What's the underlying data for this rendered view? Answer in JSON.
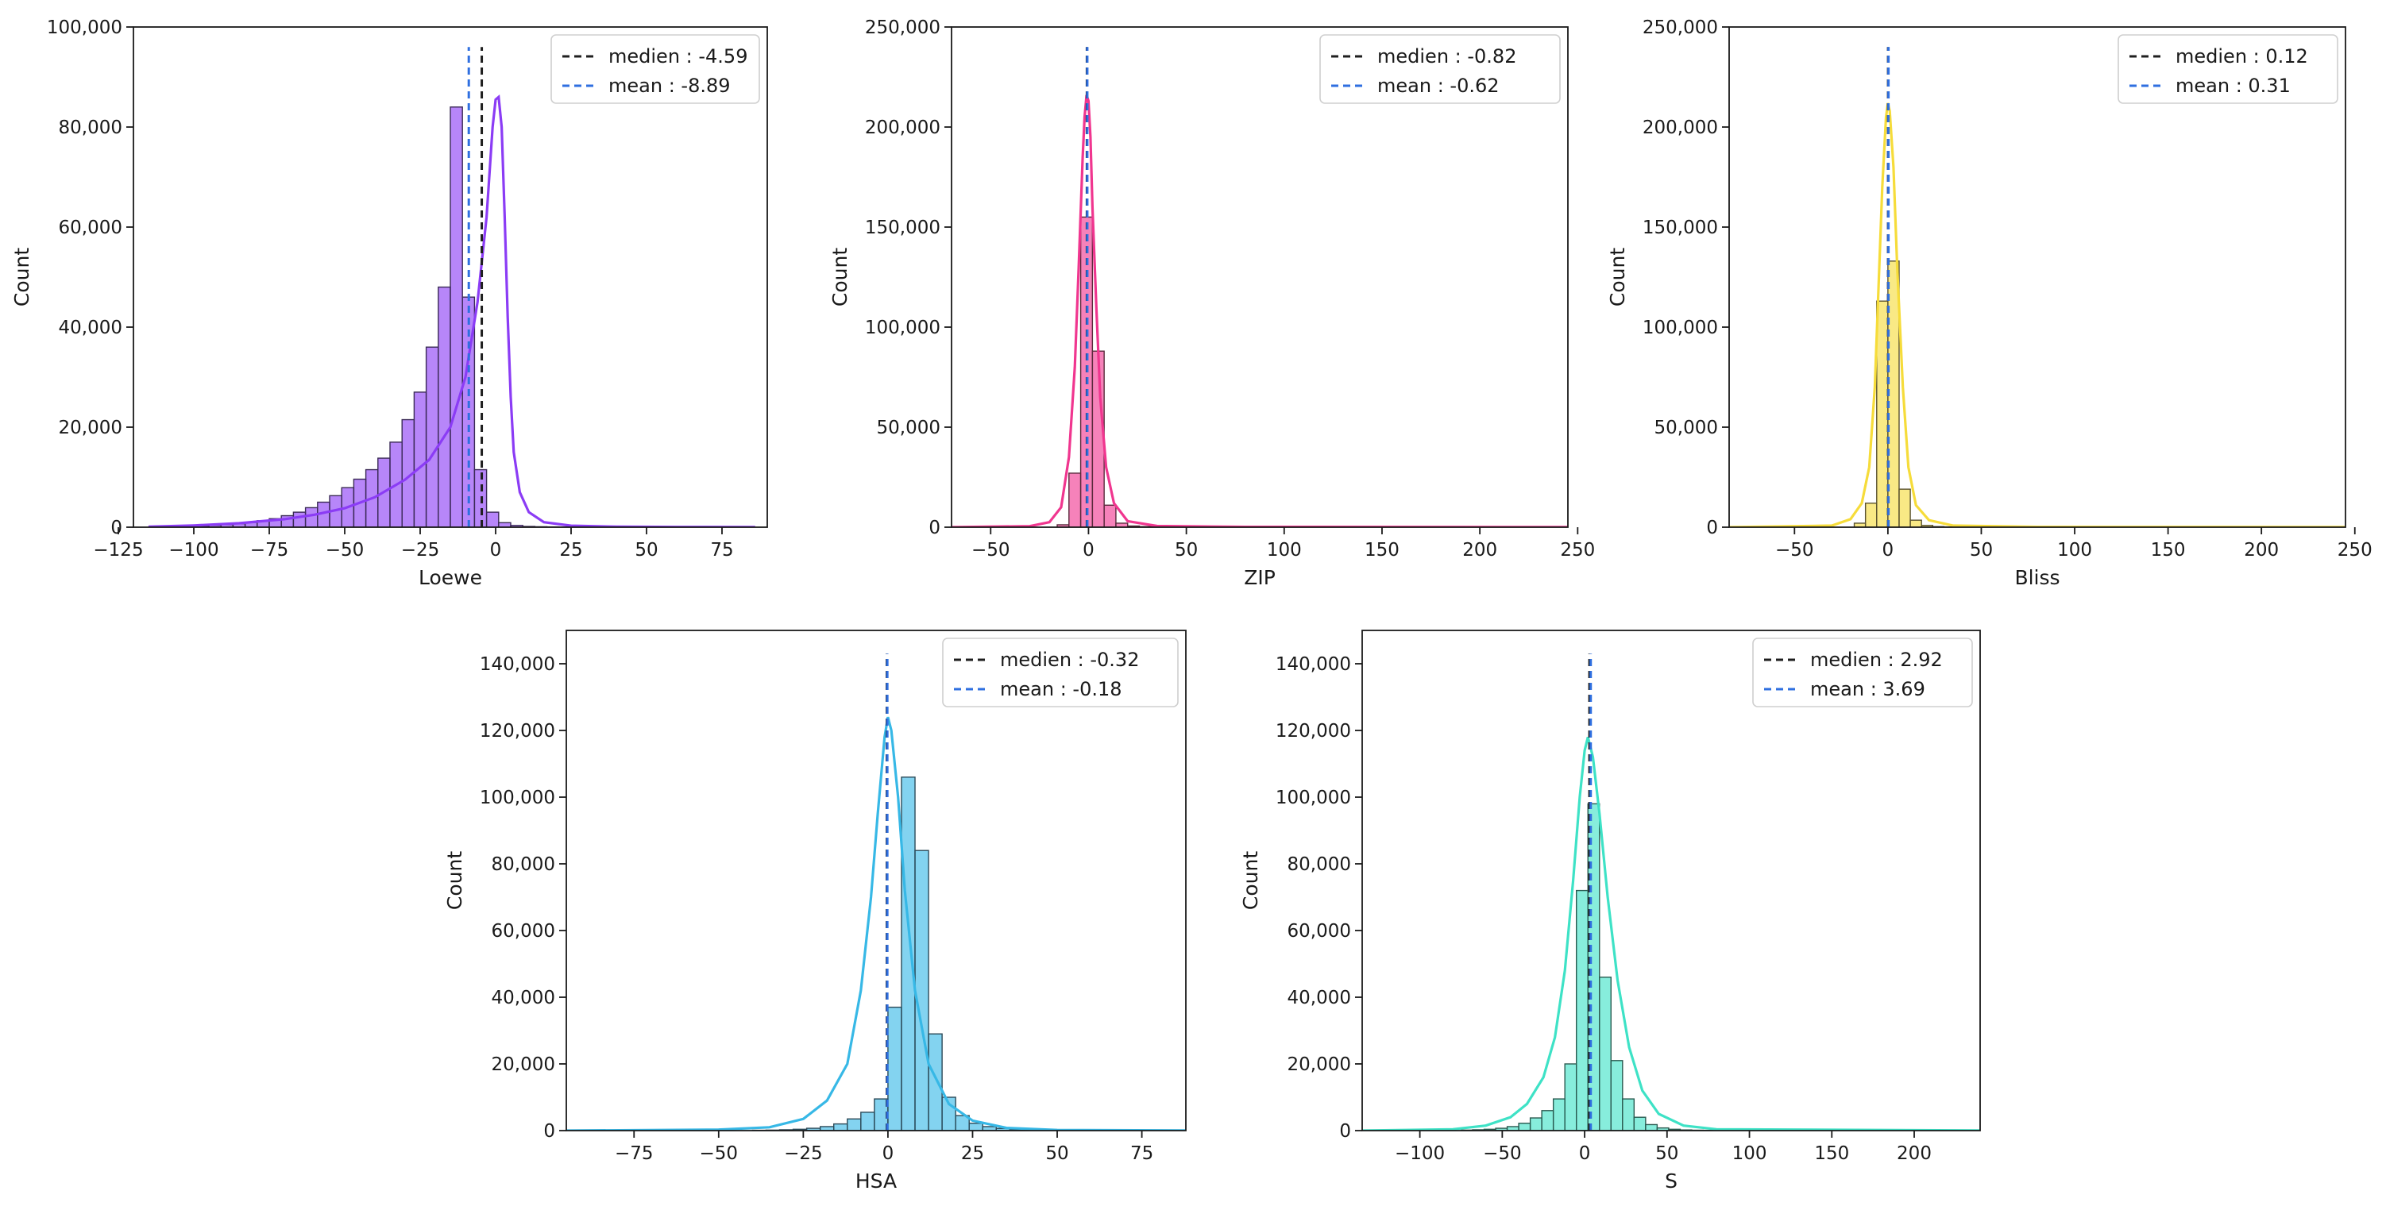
{
  "chart_data": [
    {
      "type": "histogram",
      "xlabel": "Loewe",
      "ylabel": "Count",
      "color": "#8b3cf5",
      "edge_color": "#3a2a55",
      "xlim": [
        -120,
        90
      ],
      "ylim": [
        0,
        100000
      ],
      "xticks": [
        -125,
        -100,
        -75,
        -50,
        -25,
        0,
        25,
        50,
        75
      ],
      "xtick_labels": [
        "−125",
        "−100",
        "−75",
        "−50",
        "−25",
        "0",
        "25",
        "50",
        "75"
      ],
      "yticks": [
        0,
        20000,
        40000,
        60000,
        80000,
        100000
      ],
      "ytick_labels": [
        "0",
        "20,000",
        "40,000",
        "60,000",
        "80,000",
        "100,000"
      ],
      "bin_start": -115,
      "bin_width": 4.0,
      "counts": [
        50,
        80,
        120,
        180,
        260,
        380,
        520,
        700,
        950,
        1300,
        1700,
        2300,
        3000,
        3900,
        5000,
        6300,
        7900,
        9600,
        11500,
        13800,
        17000,
        21500,
        27000,
        36000,
        48000,
        84000,
        46000,
        11500,
        3000,
        900,
        350,
        150,
        90,
        60,
        40,
        30,
        20,
        15,
        10,
        8,
        6,
        5,
        4,
        3,
        3,
        2,
        2,
        2,
        2,
        1
      ],
      "kde": [
        [
          -115,
          100
        ],
        [
          -100,
          350
        ],
        [
          -85,
          800
        ],
        [
          -70,
          1600
        ],
        [
          -60,
          2500
        ],
        [
          -50,
          3800
        ],
        [
          -40,
          6000
        ],
        [
          -30,
          9500
        ],
        [
          -22,
          13500
        ],
        [
          -15,
          20000
        ],
        [
          -10,
          30000
        ],
        [
          -6,
          45000
        ],
        [
          -3,
          62000
        ],
        [
          -1,
          80000
        ],
        [
          0,
          85500
        ],
        [
          1,
          86000
        ],
        [
          2,
          80000
        ],
        [
          3,
          62000
        ],
        [
          4,
          42000
        ],
        [
          5,
          26000
        ],
        [
          6,
          15000
        ],
        [
          8,
          7000
        ],
        [
          11,
          3000
        ],
        [
          16,
          1000
        ],
        [
          25,
          300
        ],
        [
          40,
          100
        ],
        [
          60,
          50
        ],
        [
          86,
          20
        ]
      ],
      "median": -4.59,
      "mean": -8.89,
      "median_label": "medien : -4.59",
      "mean_label": "mean : -8.89",
      "line_top": 96000
    },
    {
      "type": "histogram",
      "xlabel": "ZIP",
      "ylabel": "Count",
      "color": "#f0368f",
      "edge_color": "#5a2a3c",
      "xlim": [
        -70,
        245
      ],
      "ylim": [
        0,
        250000
      ],
      "xticks": [
        -50,
        0,
        50,
        100,
        150,
        200,
        250
      ],
      "xtick_labels": [
        "−50",
        "0",
        "50",
        "100",
        "150",
        "200",
        "250"
      ],
      "yticks": [
        0,
        50000,
        100000,
        150000,
        200000,
        250000
      ],
      "ytick_labels": [
        "0",
        "50,000",
        "100,000",
        "150,000",
        "200,000",
        "250,000"
      ],
      "bin_start": -16,
      "bin_width": 6.0,
      "counts": [
        1200,
        27000,
        155000,
        88000,
        11000,
        2000,
        600,
        300,
        150,
        100,
        60,
        40,
        30,
        20,
        15,
        10,
        8,
        6,
        5,
        4,
        3,
        3,
        2,
        2,
        2,
        2,
        2,
        2,
        2,
        2,
        2,
        2,
        2,
        2,
        2,
        2,
        1,
        1,
        1,
        1,
        1,
        1,
        1,
        1,
        1
      ],
      "kde": [
        [
          -70,
          0
        ],
        [
          -30,
          500
        ],
        [
          -20,
          2500
        ],
        [
          -14,
          10000
        ],
        [
          -10,
          35000
        ],
        [
          -7,
          80000
        ],
        [
          -5,
          130000
        ],
        [
          -3,
          185000
        ],
        [
          -2,
          205000
        ],
        [
          -1,
          216000
        ],
        [
          0,
          213000
        ],
        [
          1,
          195000
        ],
        [
          2,
          160000
        ],
        [
          4,
          110000
        ],
        [
          6,
          65000
        ],
        [
          9,
          30000
        ],
        [
          13,
          12000
        ],
        [
          20,
          3000
        ],
        [
          35,
          600
        ],
        [
          80,
          150
        ],
        [
          245,
          50
        ]
      ],
      "median": -0.82,
      "mean": -0.62,
      "median_label": "medien : -0.82",
      "mean_label": "mean : -0.62",
      "line_top": 240000
    },
    {
      "type": "histogram",
      "xlabel": "Bliss",
      "ylabel": "Count",
      "color": "#f6dc3a",
      "edge_color": "#5a5230",
      "xlim": [
        -85,
        245
      ],
      "ylim": [
        0,
        250000
      ],
      "xticks": [
        -50,
        0,
        50,
        100,
        150,
        200,
        250
      ],
      "xtick_labels": [
        "−50",
        "0",
        "50",
        "100",
        "150",
        "200",
        "250"
      ],
      "yticks": [
        0,
        50000,
        100000,
        150000,
        200000,
        250000
      ],
      "ytick_labels": [
        "0",
        "50,000",
        "100,000",
        "150,000",
        "200,000",
        "250,000"
      ],
      "bin_start": -18,
      "bin_width": 6.0,
      "counts": [
        2000,
        12000,
        113000,
        133000,
        19000,
        3500,
        900,
        300,
        150,
        80,
        60,
        40,
        30,
        20,
        15,
        10,
        8,
        6,
        5,
        4,
        3,
        3,
        2,
        2,
        2,
        2,
        2,
        2,
        2,
        2,
        2,
        2,
        2,
        2,
        2,
        2,
        1,
        1,
        1,
        1,
        1,
        1,
        1,
        1
      ],
      "kde": [
        [
          -85,
          0
        ],
        [
          -30,
          800
        ],
        [
          -20,
          4000
        ],
        [
          -14,
          12000
        ],
        [
          -10,
          30000
        ],
        [
          -7,
          70000
        ],
        [
          -5,
          120000
        ],
        [
          -3,
          170000
        ],
        [
          -1,
          205000
        ],
        [
          0,
          212000
        ],
        [
          1,
          208000
        ],
        [
          3,
          180000
        ],
        [
          5,
          130000
        ],
        [
          8,
          70000
        ],
        [
          11,
          30000
        ],
        [
          15,
          11000
        ],
        [
          22,
          3500
        ],
        [
          35,
          800
        ],
        [
          80,
          150
        ],
        [
          245,
          50
        ]
      ],
      "median": 0.12,
      "mean": 0.31,
      "median_label": "medien : 0.12",
      "mean_label": "mean : 0.31",
      "line_top": 240000
    },
    {
      "type": "histogram",
      "xlabel": "HSA",
      "ylabel": "Count",
      "color": "#37b8e6",
      "edge_color": "#2c4a58",
      "xlim": [
        -95,
        88
      ],
      "ylim": [
        0,
        150000
      ],
      "xticks": [
        -75,
        -50,
        -25,
        0,
        25,
        50,
        75
      ],
      "xtick_labels": [
        "−75",
        "−50",
        "−25",
        "0",
        "25",
        "50",
        "75"
      ],
      "yticks": [
        0,
        20000,
        40000,
        60000,
        80000,
        100000,
        120000,
        140000
      ],
      "ytick_labels": [
        "0",
        "20,000",
        "40,000",
        "60,000",
        "80,000",
        "100,000",
        "120,000",
        "140,000"
      ],
      "bin_start": -40,
      "bin_width": 4.0,
      "counts": [
        100,
        150,
        250,
        400,
        700,
        1200,
        2000,
        3500,
        5500,
        9500,
        37000,
        106000,
        84000,
        29000,
        10000,
        4500,
        2200,
        1200,
        650,
        350,
        200,
        120,
        80,
        50,
        30,
        20,
        15,
        10,
        8,
        6
      ],
      "kde": [
        [
          -95,
          0
        ],
        [
          -50,
          300
        ],
        [
          -35,
          1000
        ],
        [
          -25,
          3500
        ],
        [
          -18,
          9000
        ],
        [
          -12,
          20000
        ],
        [
          -8,
          42000
        ],
        [
          -5,
          70000
        ],
        [
          -3,
          95000
        ],
        [
          -1,
          118000
        ],
        [
          0,
          124000
        ],
        [
          1,
          120000
        ],
        [
          3,
          100000
        ],
        [
          5,
          72000
        ],
        [
          8,
          42000
        ],
        [
          12,
          20000
        ],
        [
          18,
          8000
        ],
        [
          25,
          3000
        ],
        [
          35,
          800
        ],
        [
          50,
          200
        ],
        [
          88,
          20
        ]
      ],
      "median": -0.32,
      "mean": -0.18,
      "median_label": "medien : -0.32",
      "mean_label": "mean : -0.18",
      "line_top": 143000
    },
    {
      "type": "histogram",
      "xlabel": "S",
      "ylabel": "Count",
      "color": "#3ee2c6",
      "edge_color": "#2a5a50",
      "xlim": [
        -135,
        240
      ],
      "ylim": [
        0,
        150000
      ],
      "xticks": [
        -100,
        -50,
        0,
        50,
        100,
        150,
        200
      ],
      "xtick_labels": [
        "−100",
        "−50",
        "0",
        "50",
        "100",
        "150",
        "200"
      ],
      "yticks": [
        0,
        20000,
        40000,
        60000,
        80000,
        100000,
        120000,
        140000
      ],
      "ytick_labels": [
        "0",
        "20,000",
        "40,000",
        "60,000",
        "80,000",
        "100,000",
        "120,000",
        "140,000"
      ],
      "bin_start": -75,
      "bin_width": 7.0,
      "counts": [
        150,
        250,
        400,
        700,
        1200,
        2200,
        3800,
        6000,
        9500,
        20000,
        72000,
        98000,
        46000,
        21000,
        9500,
        4000,
        1800,
        800,
        400,
        200,
        120,
        80,
        50,
        30,
        20,
        15,
        10,
        8,
        6,
        5,
        4,
        3,
        3,
        2,
        2,
        2,
        2,
        2,
        2,
        2,
        2,
        2,
        2,
        2,
        2,
        2,
        1,
        1,
        1
      ],
      "kde": [
        [
          -135,
          0
        ],
        [
          -80,
          400
        ],
        [
          -60,
          1500
        ],
        [
          -45,
          4000
        ],
        [
          -35,
          8000
        ],
        [
          -25,
          16000
        ],
        [
          -18,
          28000
        ],
        [
          -12,
          48000
        ],
        [
          -7,
          75000
        ],
        [
          -3,
          100000
        ],
        [
          0,
          114000
        ],
        [
          2,
          118000
        ],
        [
          5,
          112000
        ],
        [
          9,
          95000
        ],
        [
          14,
          70000
        ],
        [
          20,
          45000
        ],
        [
          27,
          25000
        ],
        [
          35,
          12000
        ],
        [
          45,
          5000
        ],
        [
          60,
          1500
        ],
        [
          80,
          400
        ],
        [
          240,
          50
        ]
      ],
      "median": 2.92,
      "mean": 3.69,
      "median_label": "medien : 2.92",
      "mean_label": "mean : 3.69",
      "line_top": 143000
    }
  ]
}
